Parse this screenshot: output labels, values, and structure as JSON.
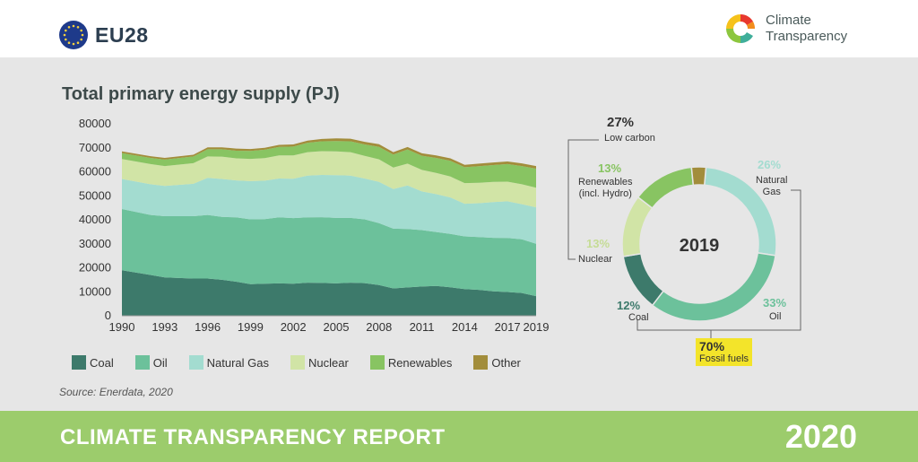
{
  "header": {
    "country": "EU28",
    "logo_line1": "Climate",
    "logo_line2": "Transparency"
  },
  "footer": {
    "title": "CLIMATE TRANSPARENCY REPORT",
    "year": "2020"
  },
  "source": "Source: Enerdata, 2020",
  "colors": {
    "coal": "#3d7a6b",
    "oil": "#6cc19b",
    "natural_gas": "#a3dcd0",
    "nuclear": "#d1e4a6",
    "renewables": "#88c462",
    "other": "#a28d3b"
  },
  "chart_data": [
    {
      "type": "area",
      "title": "Total primary energy supply (PJ)",
      "xlabel": "",
      "ylabel": "",
      "ylim": [
        0,
        80000
      ],
      "yticks": [
        "0",
        "10000",
        "20000",
        "30000",
        "40000",
        "50000",
        "60000",
        "70000",
        "80000"
      ],
      "xticks": [
        "1990",
        "1993",
        "1996",
        "1999",
        "2002",
        "2005",
        "2008",
        "2011",
        "2014",
        "2017",
        "2019"
      ],
      "x": [
        1990,
        1992,
        1993,
        1995,
        1996,
        1997,
        1998,
        1999,
        2000,
        2001,
        2002,
        2003,
        2004,
        2005,
        2006,
        2007,
        2008,
        2009,
        2010,
        2011,
        2012,
        2013,
        2014,
        2015,
        2016,
        2017,
        2018,
        2019
      ],
      "stacked": true,
      "series": [
        {
          "name": "Coal",
          "values": [
            19000,
            17000,
            16000,
            15500,
            15500,
            15000,
            14200,
            13200,
            13400,
            13500,
            13400,
            13800,
            13700,
            13500,
            13800,
            13600,
            12800,
            11400,
            11800,
            12200,
            12400,
            11900,
            11100,
            10800,
            10200,
            9900,
            9500,
            8200
          ]
        },
        {
          "name": "Oil",
          "values": [
            25500,
            25000,
            25500,
            26000,
            26500,
            26200,
            26800,
            27000,
            26900,
            27500,
            27300,
            27200,
            27400,
            27300,
            27000,
            26600,
            25800,
            24900,
            24400,
            23500,
            22500,
            22200,
            22000,
            22000,
            22300,
            22500,
            22400,
            21800
          ]
        },
        {
          "name": "Natural Gas",
          "values": [
            12500,
            12800,
            12600,
            13500,
            15500,
            15800,
            15400,
            15900,
            16000,
            16200,
            16400,
            17400,
            17600,
            17800,
            17600,
            17000,
            17200,
            16500,
            18100,
            16100,
            15800,
            15200,
            13600,
            14100,
            14900,
            15300,
            14600,
            15200
          ]
        },
        {
          "name": "Nuclear",
          "values": [
            8300,
            8400,
            8300,
            8600,
            8900,
            9300,
            9200,
            9300,
            9400,
            9600,
            9700,
            9800,
            9900,
            9900,
            9800,
            9400,
            9400,
            9000,
            9100,
            9000,
            8800,
            8700,
            8600,
            8500,
            8400,
            8200,
            8300,
            8200
          ]
        },
        {
          "name": "Renewables",
          "values": [
            2500,
            2600,
            2700,
            2800,
            3000,
            3100,
            3200,
            3300,
            3500,
            3600,
            3700,
            3900,
            4100,
            4300,
            4500,
            4800,
            5200,
            5400,
            5900,
            5900,
            6300,
            6600,
            6600,
            6900,
            7000,
            7300,
            7600,
            7900
          ]
        },
        {
          "name": "Other",
          "values": [
            700,
            700,
            700,
            700,
            800,
            800,
            900,
            800,
            800,
            800,
            900,
            900,
            1000,
            1100,
            1100,
            1100,
            1100,
            1000,
            1000,
            1000,
            1000,
            1000,
            1000,
            1100,
            1100,
            1100,
            1100,
            1100
          ]
        }
      ]
    },
    {
      "type": "pie",
      "center_label": "2019",
      "slices": [
        {
          "name": "Natural Gas",
          "value": 26,
          "label": "26%",
          "text": "Natural\nGas"
        },
        {
          "name": "Oil",
          "value": 33,
          "label": "33%",
          "text": "Oil"
        },
        {
          "name": "Coal",
          "value": 12,
          "label": "12%",
          "text": "Coal"
        },
        {
          "name": "Nuclear",
          "value": 13,
          "label": "13%",
          "text": "Nuclear"
        },
        {
          "name": "Renewables",
          "value": 13,
          "label": "13%",
          "text": "Renewables\n(incl. Hydro)"
        },
        {
          "name": "Other",
          "value": 3,
          "label": "",
          "text": ""
        }
      ],
      "groups": {
        "low_carbon_pct": "27%",
        "low_carbon_label": "Low carbon",
        "fossil_pct": "70%",
        "fossil_label": "Fossil fuels"
      }
    }
  ]
}
